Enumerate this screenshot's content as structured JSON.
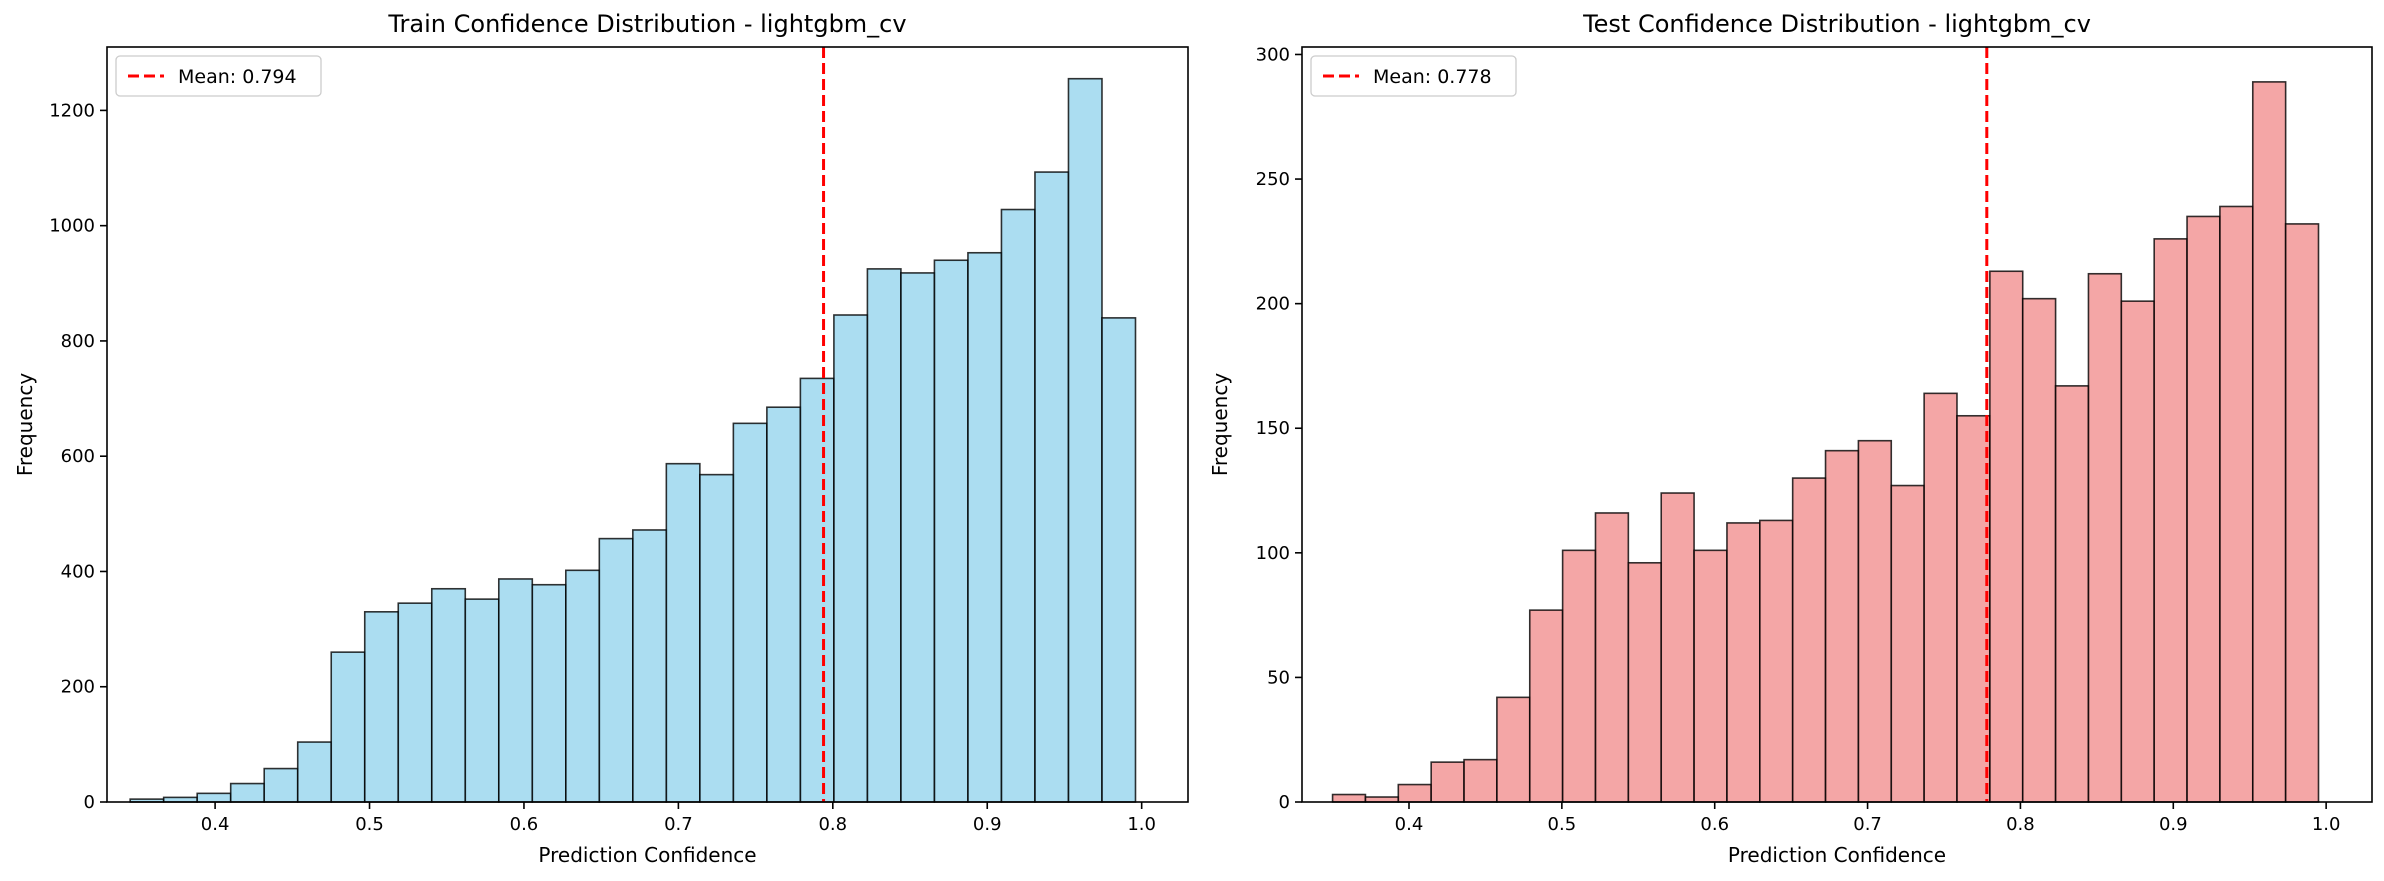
{
  "chart_data": [
    {
      "type": "bar",
      "title": "Train Confidence Distribution - lightgbm_cv",
      "xlabel": "Prediction Confidence",
      "ylabel": "Frequency",
      "xlim": [
        0.33,
        1.03
      ],
      "ylim": [
        0,
        1310
      ],
      "xticks": [
        0.4,
        0.5,
        0.6,
        0.7,
        0.8,
        0.9,
        1.0
      ],
      "xtick_labels": [
        "0.4",
        "0.5",
        "0.6",
        "0.7",
        "0.8",
        "0.9",
        "1.0"
      ],
      "yticks": [
        0,
        200,
        400,
        600,
        800,
        1000,
        1200
      ],
      "ytick_labels": [
        "0",
        "200",
        "400",
        "600",
        "800",
        "1000",
        "1200"
      ],
      "bin_edges": [
        0.345,
        0.3667,
        0.3884,
        0.4101,
        0.4318,
        0.4535,
        0.4752,
        0.4969,
        0.5186,
        0.5403,
        0.562,
        0.5837,
        0.6054,
        0.6271,
        0.6488,
        0.6705,
        0.6922,
        0.7139,
        0.7356,
        0.7573,
        0.779,
        0.8007,
        0.8224,
        0.8441,
        0.8658,
        0.8875,
        0.9092,
        0.9309,
        0.9526,
        0.9743,
        0.996
      ],
      "values": [
        5,
        8,
        15,
        32,
        58,
        104,
        260,
        330,
        345,
        370,
        352,
        387,
        377,
        402,
        457,
        472,
        587,
        568,
        657,
        685,
        735,
        845,
        925,
        918,
        940,
        953,
        1028,
        1093,
        1255,
        840
      ],
      "bar_color": "#87CEEB",
      "edge_color": "#000000",
      "mean": 0.794,
      "legend": "Mean: 0.794",
      "legend_position": "top-left",
      "mean_line_color": "#ff0000"
    },
    {
      "type": "bar",
      "title": "Test Confidence Distribution - lightgbm_cv",
      "xlabel": "Prediction Confidence",
      "ylabel": "Frequency",
      "xlim": [
        0.33,
        1.03
      ],
      "ylim": [
        0,
        303
      ],
      "xticks": [
        0.4,
        0.5,
        0.6,
        0.7,
        0.8,
        0.9,
        1.0
      ],
      "xtick_labels": [
        "0.4",
        "0.5",
        "0.6",
        "0.7",
        "0.8",
        "0.9",
        "1.0"
      ],
      "yticks": [
        0,
        50,
        100,
        150,
        200,
        250,
        300
      ],
      "ytick_labels": [
        "0",
        "50",
        "100",
        "150",
        "200",
        "250",
        "300"
      ],
      "bin_edges": [
        0.35,
        0.3715,
        0.393,
        0.4145,
        0.436,
        0.4575,
        0.479,
        0.5005,
        0.522,
        0.5435,
        0.565,
        0.5865,
        0.608,
        0.6295,
        0.651,
        0.6725,
        0.694,
        0.7155,
        0.737,
        0.7585,
        0.78,
        0.8015,
        0.823,
        0.8445,
        0.866,
        0.8875,
        0.909,
        0.9305,
        0.952,
        0.9735,
        0.995
      ],
      "values": [
        3,
        2,
        7,
        16,
        17,
        42,
        77,
        101,
        116,
        96,
        124,
        101,
        112,
        113,
        130,
        141,
        145,
        127,
        164,
        155,
        213,
        202,
        167,
        212,
        201,
        226,
        235,
        239,
        289,
        232
      ],
      "bar_color": "#F08080",
      "edge_color": "#000000",
      "mean": 0.778,
      "legend": "Mean: 0.778",
      "legend_position": "top-left",
      "mean_line_color": "#ff0000"
    }
  ]
}
